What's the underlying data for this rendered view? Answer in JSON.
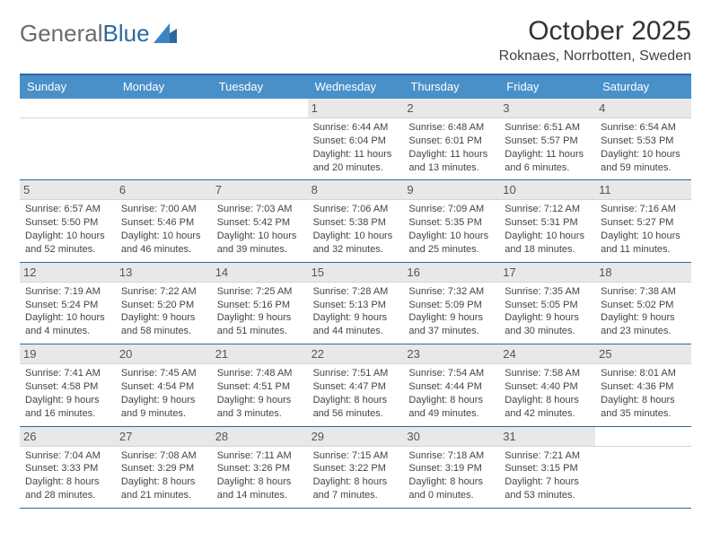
{
  "brand": {
    "part1": "General",
    "part2": "Blue"
  },
  "header": {
    "month": "October 2025",
    "location": "Roknaes, Norrbotten, Sweden"
  },
  "colors": {
    "header_bg": "#4a90c8",
    "rule": "#2c6aa0",
    "daynum_bg": "#e8e8e8",
    "text": "#222"
  },
  "days_of_week": [
    "Sunday",
    "Monday",
    "Tuesday",
    "Wednesday",
    "Thursday",
    "Friday",
    "Saturday"
  ],
  "layout": {
    "first_weekday_index": 3,
    "days_in_month": 31
  },
  "days": {
    "1": {
      "sunrise": "6:44 AM",
      "sunset": "6:04 PM",
      "daylight": "11 hours and 20 minutes."
    },
    "2": {
      "sunrise": "6:48 AM",
      "sunset": "6:01 PM",
      "daylight": "11 hours and 13 minutes."
    },
    "3": {
      "sunrise": "6:51 AM",
      "sunset": "5:57 PM",
      "daylight": "11 hours and 6 minutes."
    },
    "4": {
      "sunrise": "6:54 AM",
      "sunset": "5:53 PM",
      "daylight": "10 hours and 59 minutes."
    },
    "5": {
      "sunrise": "6:57 AM",
      "sunset": "5:50 PM",
      "daylight": "10 hours and 52 minutes."
    },
    "6": {
      "sunrise": "7:00 AM",
      "sunset": "5:46 PM",
      "daylight": "10 hours and 46 minutes."
    },
    "7": {
      "sunrise": "7:03 AM",
      "sunset": "5:42 PM",
      "daylight": "10 hours and 39 minutes."
    },
    "8": {
      "sunrise": "7:06 AM",
      "sunset": "5:38 PM",
      "daylight": "10 hours and 32 minutes."
    },
    "9": {
      "sunrise": "7:09 AM",
      "sunset": "5:35 PM",
      "daylight": "10 hours and 25 minutes."
    },
    "10": {
      "sunrise": "7:12 AM",
      "sunset": "5:31 PM",
      "daylight": "10 hours and 18 minutes."
    },
    "11": {
      "sunrise": "7:16 AM",
      "sunset": "5:27 PM",
      "daylight": "10 hours and 11 minutes."
    },
    "12": {
      "sunrise": "7:19 AM",
      "sunset": "5:24 PM",
      "daylight": "10 hours and 4 minutes."
    },
    "13": {
      "sunrise": "7:22 AM",
      "sunset": "5:20 PM",
      "daylight": "9 hours and 58 minutes."
    },
    "14": {
      "sunrise": "7:25 AM",
      "sunset": "5:16 PM",
      "daylight": "9 hours and 51 minutes."
    },
    "15": {
      "sunrise": "7:28 AM",
      "sunset": "5:13 PM",
      "daylight": "9 hours and 44 minutes."
    },
    "16": {
      "sunrise": "7:32 AM",
      "sunset": "5:09 PM",
      "daylight": "9 hours and 37 minutes."
    },
    "17": {
      "sunrise": "7:35 AM",
      "sunset": "5:05 PM",
      "daylight": "9 hours and 30 minutes."
    },
    "18": {
      "sunrise": "7:38 AM",
      "sunset": "5:02 PM",
      "daylight": "9 hours and 23 minutes."
    },
    "19": {
      "sunrise": "7:41 AM",
      "sunset": "4:58 PM",
      "daylight": "9 hours and 16 minutes."
    },
    "20": {
      "sunrise": "7:45 AM",
      "sunset": "4:54 PM",
      "daylight": "9 hours and 9 minutes."
    },
    "21": {
      "sunrise": "7:48 AM",
      "sunset": "4:51 PM",
      "daylight": "9 hours and 3 minutes."
    },
    "22": {
      "sunrise": "7:51 AM",
      "sunset": "4:47 PM",
      "daylight": "8 hours and 56 minutes."
    },
    "23": {
      "sunrise": "7:54 AM",
      "sunset": "4:44 PM",
      "daylight": "8 hours and 49 minutes."
    },
    "24": {
      "sunrise": "7:58 AM",
      "sunset": "4:40 PM",
      "daylight": "8 hours and 42 minutes."
    },
    "25": {
      "sunrise": "8:01 AM",
      "sunset": "4:36 PM",
      "daylight": "8 hours and 35 minutes."
    },
    "26": {
      "sunrise": "7:04 AM",
      "sunset": "3:33 PM",
      "daylight": "8 hours and 28 minutes."
    },
    "27": {
      "sunrise": "7:08 AM",
      "sunset": "3:29 PM",
      "daylight": "8 hours and 21 minutes."
    },
    "28": {
      "sunrise": "7:11 AM",
      "sunset": "3:26 PM",
      "daylight": "8 hours and 14 minutes."
    },
    "29": {
      "sunrise": "7:15 AM",
      "sunset": "3:22 PM",
      "daylight": "8 hours and 7 minutes."
    },
    "30": {
      "sunrise": "7:18 AM",
      "sunset": "3:19 PM",
      "daylight": "8 hours and 0 minutes."
    },
    "31": {
      "sunrise": "7:21 AM",
      "sunset": "3:15 PM",
      "daylight": "7 hours and 53 minutes."
    }
  },
  "labels": {
    "sunrise": "Sunrise:",
    "sunset": "Sunset:",
    "daylight": "Daylight:"
  }
}
